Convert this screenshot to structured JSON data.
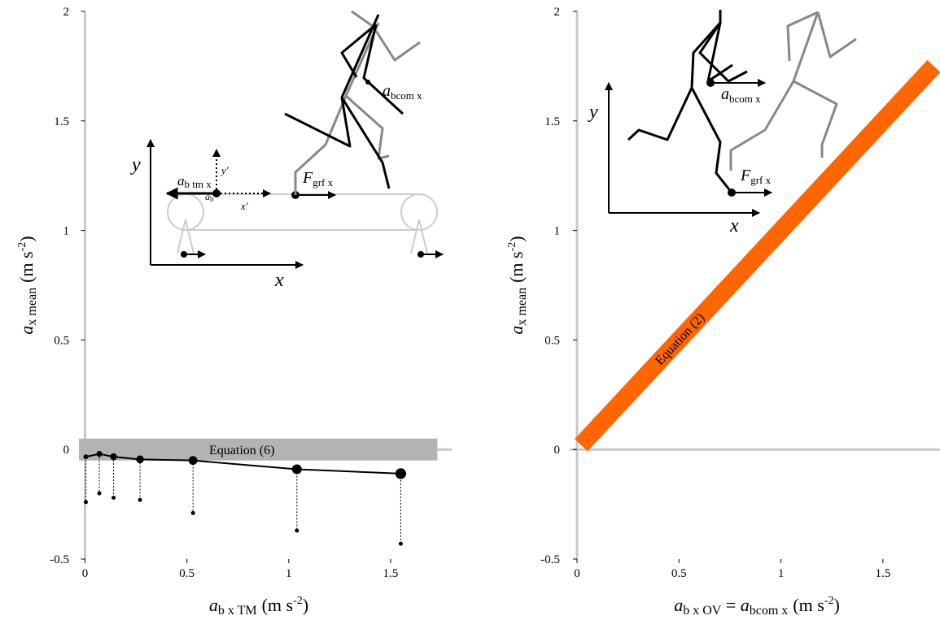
{
  "chart_data": [
    {
      "type": "line",
      "xlabel": [
        "a",
        "b x TM",
        "(m s",
        "-2",
        ")"
      ],
      "ylabel": [
        "a",
        "x mean",
        "(m s",
        "-2",
        ")"
      ],
      "xlim": [
        -0.03,
        1.8
      ],
      "ylim": [
        -0.5,
        2
      ],
      "xticks": [
        0,
        0.5,
        1,
        1.5
      ],
      "yticks": [
        -0.5,
        0,
        0.5,
        1,
        1.5,
        2
      ],
      "series": [
        {
          "color": "#000000",
          "x": [
            0.004,
            0.07,
            0.14,
            0.27,
            0.53,
            1.04,
            1.55
          ],
          "values": [
            -0.033,
            -0.02,
            -0.033,
            -0.045,
            -0.05,
            -0.09,
            -0.11
          ],
          "drop_values": [
            -0.24,
            -0.2,
            -0.22,
            -0.23,
            -0.29,
            -0.37,
            -0.43
          ]
        }
      ],
      "band": {
        "label": "Equation (6)",
        "color": "#b3b3b3",
        "xlim": [
          -0.03,
          1.73
        ],
        "ylim": [
          -0.05,
          0.05
        ]
      },
      "annotations": [
        "y",
        "x",
        "y'",
        "x'",
        "a",
        "b tm x",
        "a",
        "b",
        "F",
        "grf x",
        "a",
        "bcom x"
      ]
    },
    {
      "type": "line",
      "xlabel": [
        "a",
        "b x OV",
        " = ",
        "a",
        "bcom x",
        "(m s",
        "-2",
        ")"
      ],
      "ylabel": [
        "a",
        "x mean",
        "(m s",
        "-2",
        ")"
      ],
      "xlim": [
        -0.036,
        1.78
      ],
      "ylim": [
        -0.5,
        2
      ],
      "xticks": [
        0,
        0.5,
        1,
        1.5
      ],
      "yticks": [
        -0.5,
        0,
        0.5,
        1,
        1.5,
        2
      ],
      "series": [
        {
          "color": "#ff6600",
          "label": "Equation (2)",
          "x": [
            0.02,
            1.75
          ],
          "values": [
            0.02,
            1.75
          ]
        }
      ],
      "annotations": [
        "y",
        "x",
        "a",
        "bcom x",
        "F",
        "grf x"
      ]
    }
  ]
}
